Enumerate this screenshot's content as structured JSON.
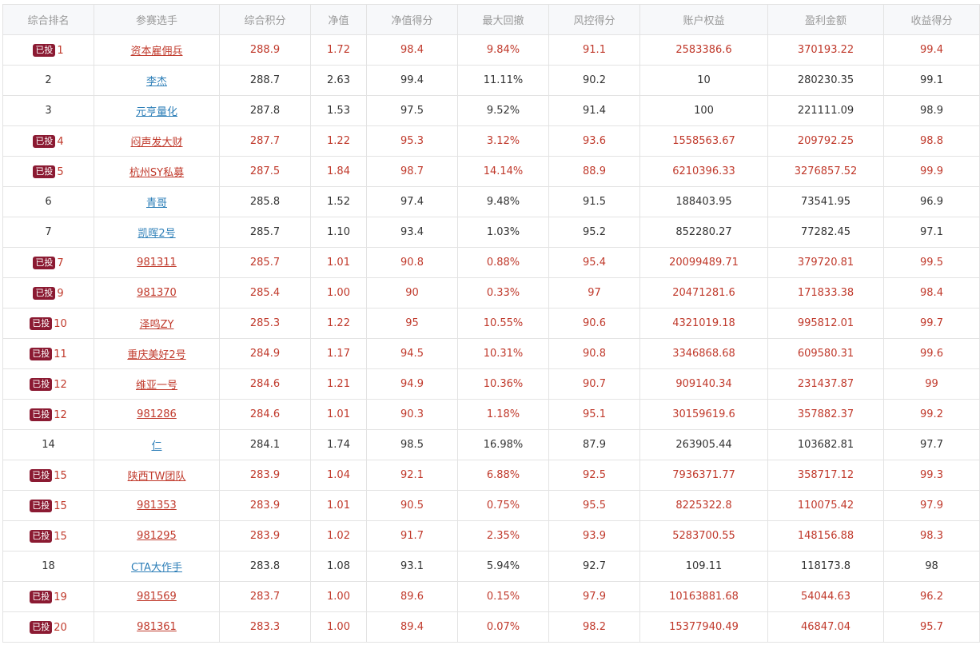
{
  "table": {
    "headers": [
      "综合排名",
      "参赛选手",
      "综合积分",
      "净值",
      "净值得分",
      "最大回撤",
      "风控得分",
      "账户权益",
      "盈利金额",
      "收益得分"
    ],
    "badge_label": "已投",
    "colors": {
      "highlight": "#c0392b",
      "normal": "#333333",
      "link_normal": "#2e7fb8",
      "badge_bg": "#8b1a32",
      "header_text": "#999999",
      "header_bg": "#f7f8fa",
      "border": "#e3e3e3"
    },
    "rows": [
      {
        "invested": true,
        "rank": "1",
        "player": "资本雇佣兵",
        "score": "288.9",
        "nav": "1.72",
        "nav_score": "98.4",
        "max_drawdown": "9.84%",
        "risk_score": "91.1",
        "equity": "2583386.6",
        "profit": "370193.22",
        "return_score": "99.4"
      },
      {
        "invested": false,
        "rank": "2",
        "player": "李杰",
        "score": "288.7",
        "nav": "2.63",
        "nav_score": "99.4",
        "max_drawdown": "11.11%",
        "risk_score": "90.2",
        "equity": "10",
        "profit": "280230.35",
        "return_score": "99.1"
      },
      {
        "invested": false,
        "rank": "3",
        "player": "元亨量化",
        "score": "287.8",
        "nav": "1.53",
        "nav_score": "97.5",
        "max_drawdown": "9.52%",
        "risk_score": "91.4",
        "equity": "100",
        "profit": "221111.09",
        "return_score": "98.9"
      },
      {
        "invested": true,
        "rank": "4",
        "player": "闷声发大财",
        "score": "287.7",
        "nav": "1.22",
        "nav_score": "95.3",
        "max_drawdown": "3.12%",
        "risk_score": "93.6",
        "equity": "1558563.67",
        "profit": "209792.25",
        "return_score": "98.8"
      },
      {
        "invested": true,
        "rank": "5",
        "player": "杭州SY私募",
        "score": "287.5",
        "nav": "1.84",
        "nav_score": "98.7",
        "max_drawdown": "14.14%",
        "risk_score": "88.9",
        "equity": "6210396.33",
        "profit": "3276857.52",
        "return_score": "99.9"
      },
      {
        "invested": false,
        "rank": "6",
        "player": "青哥",
        "score": "285.8",
        "nav": "1.52",
        "nav_score": "97.4",
        "max_drawdown": "9.48%",
        "risk_score": "91.5",
        "equity": "188403.95",
        "profit": "73541.95",
        "return_score": "96.9"
      },
      {
        "invested": false,
        "rank": "7",
        "player": "凯晖2号",
        "score": "285.7",
        "nav": "1.10",
        "nav_score": "93.4",
        "max_drawdown": "1.03%",
        "risk_score": "95.2",
        "equity": "852280.27",
        "profit": "77282.45",
        "return_score": "97.1"
      },
      {
        "invested": true,
        "rank": "7",
        "player": "981311",
        "score": "285.7",
        "nav": "1.01",
        "nav_score": "90.8",
        "max_drawdown": "0.88%",
        "risk_score": "95.4",
        "equity": "20099489.71",
        "profit": "379720.81",
        "return_score": "99.5"
      },
      {
        "invested": true,
        "rank": "9",
        "player": "981370",
        "score": "285.4",
        "nav": "1.00",
        "nav_score": "90",
        "max_drawdown": "0.33%",
        "risk_score": "97",
        "equity": "20471281.6",
        "profit": "171833.38",
        "return_score": "98.4"
      },
      {
        "invested": true,
        "rank": "10",
        "player": "泽鸣ZY",
        "score": "285.3",
        "nav": "1.22",
        "nav_score": "95",
        "max_drawdown": "10.55%",
        "risk_score": "90.6",
        "equity": "4321019.18",
        "profit": "995812.01",
        "return_score": "99.7"
      },
      {
        "invested": true,
        "rank": "11",
        "player": "重庆美好2号",
        "score": "284.9",
        "nav": "1.17",
        "nav_score": "94.5",
        "max_drawdown": "10.31%",
        "risk_score": "90.8",
        "equity": "3346868.68",
        "profit": "609580.31",
        "return_score": "99.6"
      },
      {
        "invested": true,
        "rank": "12",
        "player": "维亚一号",
        "score": "284.6",
        "nav": "1.21",
        "nav_score": "94.9",
        "max_drawdown": "10.36%",
        "risk_score": "90.7",
        "equity": "909140.34",
        "profit": "231437.87",
        "return_score": "99"
      },
      {
        "invested": true,
        "rank": "12",
        "player": "981286",
        "score": "284.6",
        "nav": "1.01",
        "nav_score": "90.3",
        "max_drawdown": "1.18%",
        "risk_score": "95.1",
        "equity": "30159619.6",
        "profit": "357882.37",
        "return_score": "99.2"
      },
      {
        "invested": false,
        "rank": "14",
        "player": "仁",
        "score": "284.1",
        "nav": "1.74",
        "nav_score": "98.5",
        "max_drawdown": "16.98%",
        "risk_score": "87.9",
        "equity": "263905.44",
        "profit": "103682.81",
        "return_score": "97.7"
      },
      {
        "invested": true,
        "rank": "15",
        "player": "陕西TW团队",
        "score": "283.9",
        "nav": "1.04",
        "nav_score": "92.1",
        "max_drawdown": "6.88%",
        "risk_score": "92.5",
        "equity": "7936371.77",
        "profit": "358717.12",
        "return_score": "99.3"
      },
      {
        "invested": true,
        "rank": "15",
        "player": "981353",
        "score": "283.9",
        "nav": "1.01",
        "nav_score": "90.5",
        "max_drawdown": "0.75%",
        "risk_score": "95.5",
        "equity": "8225322.8",
        "profit": "110075.42",
        "return_score": "97.9"
      },
      {
        "invested": true,
        "rank": "15",
        "player": "981295",
        "score": "283.9",
        "nav": "1.02",
        "nav_score": "91.7",
        "max_drawdown": "2.35%",
        "risk_score": "93.9",
        "equity": "5283700.55",
        "profit": "148156.88",
        "return_score": "98.3"
      },
      {
        "invested": false,
        "rank": "18",
        "player": "CTA大作手",
        "score": "283.8",
        "nav": "1.08",
        "nav_score": "93.1",
        "max_drawdown": "5.94%",
        "risk_score": "92.7",
        "equity": "109.11",
        "profit": "118173.8",
        "return_score": "98"
      },
      {
        "invested": true,
        "rank": "19",
        "player": "981569",
        "score": "283.7",
        "nav": "1.00",
        "nav_score": "89.6",
        "max_drawdown": "0.15%",
        "risk_score": "97.9",
        "equity": "10163881.68",
        "profit": "54044.63",
        "return_score": "96.2"
      },
      {
        "invested": true,
        "rank": "20",
        "player": "981361",
        "score": "283.3",
        "nav": "1.00",
        "nav_score": "89.4",
        "max_drawdown": "0.07%",
        "risk_score": "98.2",
        "equity": "15377940.49",
        "profit": "46847.04",
        "return_score": "95.7"
      }
    ]
  }
}
